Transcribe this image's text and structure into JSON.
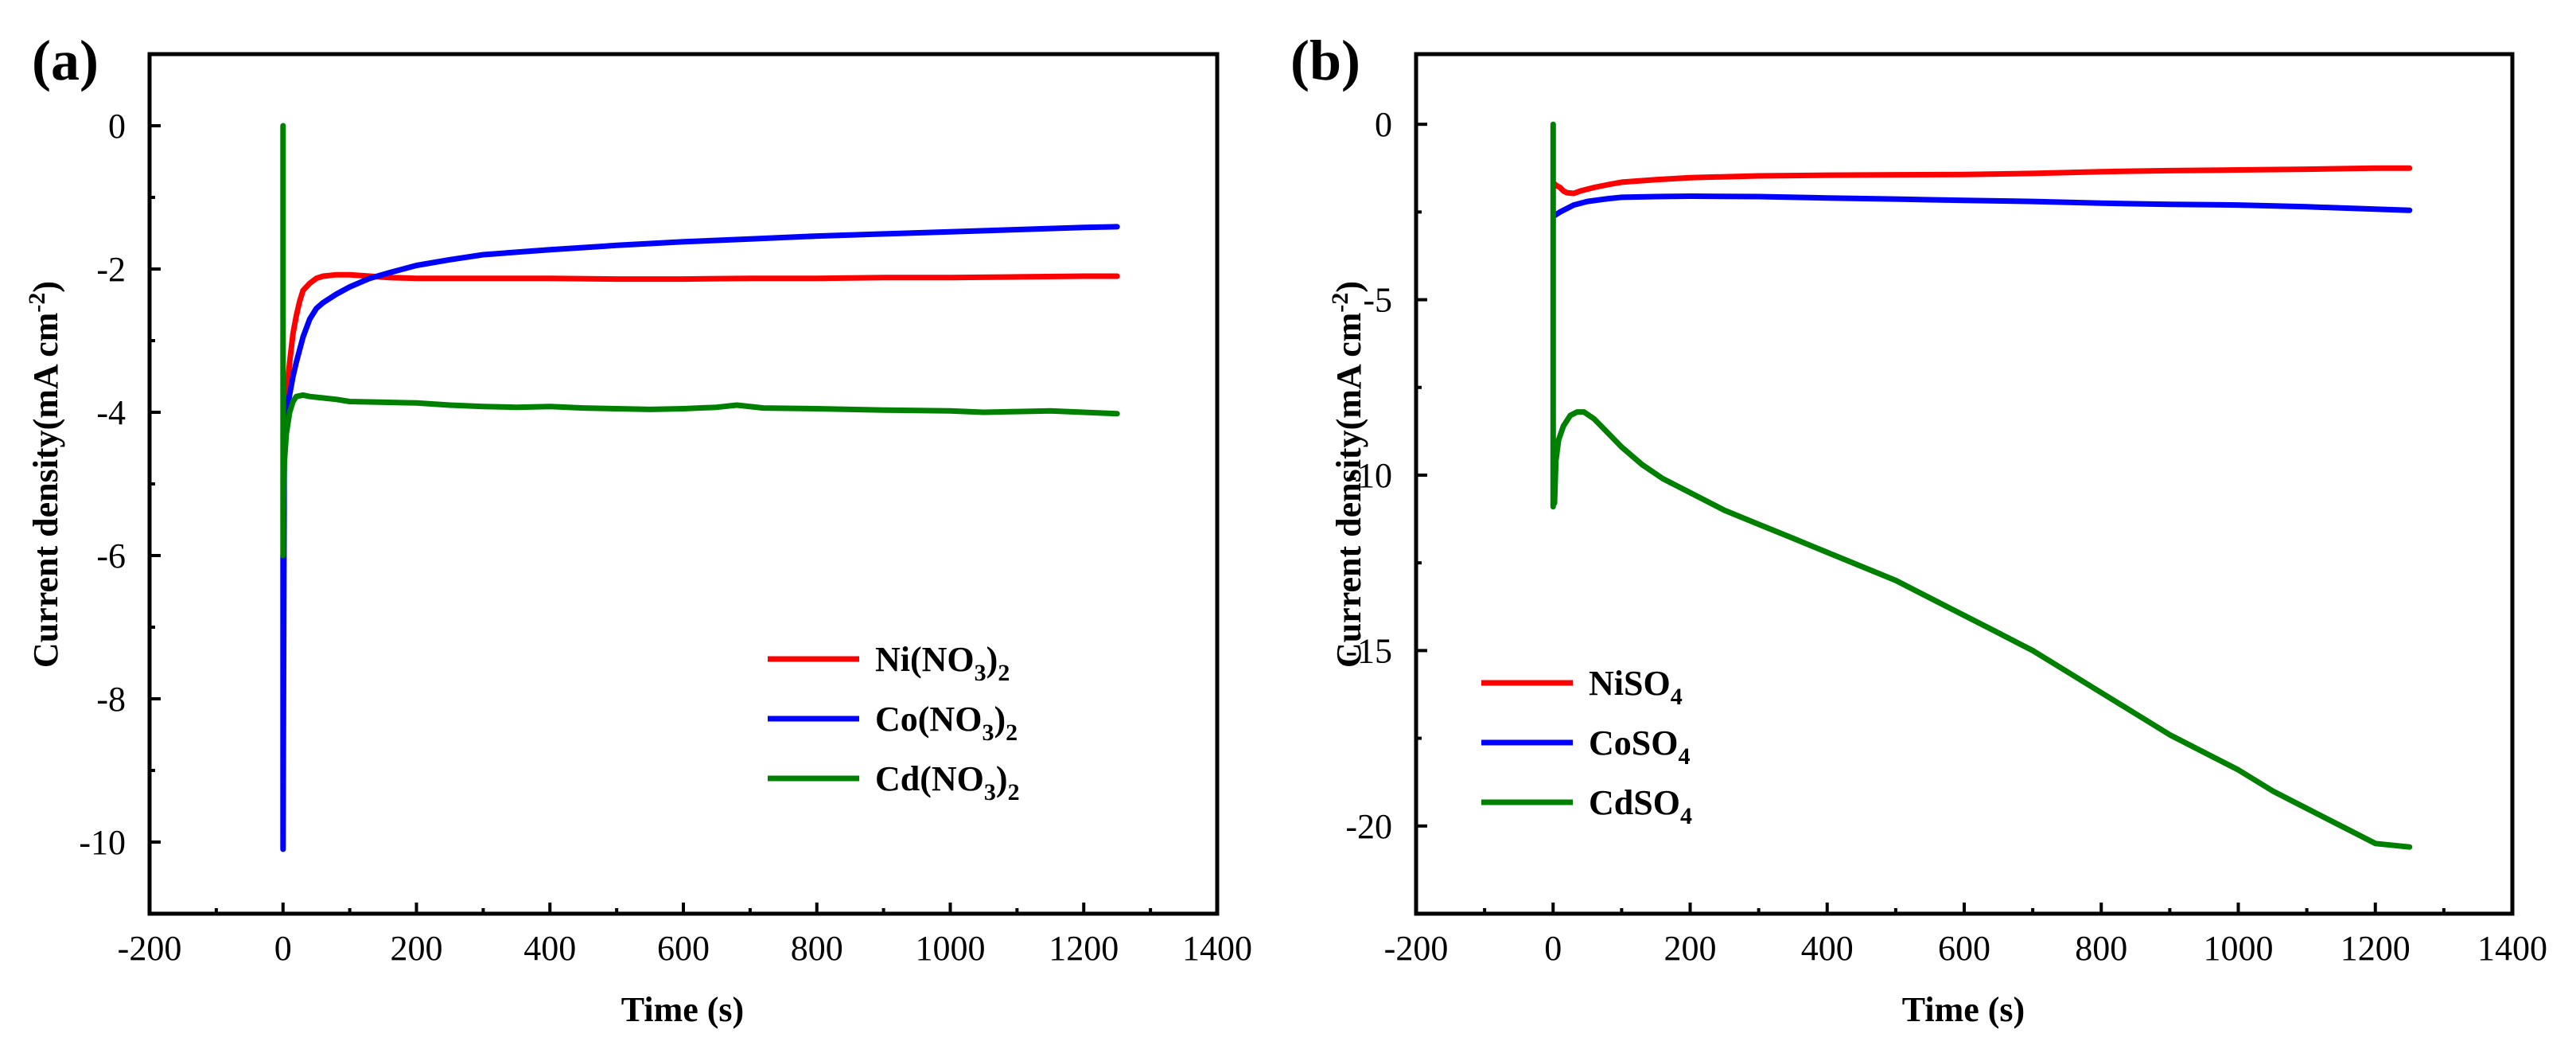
{
  "chart_data": [
    {
      "panel_label": "(a)",
      "type": "line",
      "xlabel": "Time (s)",
      "ylabel": "Current density(mA  cm",
      "ylabel_sup": "-2",
      "ylabel_close": ")",
      "xlim": [
        -200,
        1400
      ],
      "ylim": [
        -11,
        1
      ],
      "xticks": [
        -200,
        0,
        200,
        400,
        600,
        800,
        1000,
        1200,
        1400
      ],
      "yticks": [
        0,
        -2,
        -4,
        -6,
        -8,
        -10
      ],
      "legend_position": "lower-right",
      "series": [
        {
          "name": "Ni(NO3)2",
          "legend": {
            "prefix": "Ni(NO",
            "sub1": "3",
            "mid": ")",
            "sub2": "2"
          },
          "color": "#ff0000",
          "x": [
            5,
            10,
            15,
            20,
            25,
            30,
            40,
            50,
            60,
            80,
            100,
            130,
            160,
            200,
            300,
            400,
            500,
            600,
            700,
            800,
            900,
            1000,
            1100,
            1200,
            1250
          ],
          "y": [
            -3.8,
            -3.3,
            -2.9,
            -2.65,
            -2.45,
            -2.3,
            -2.2,
            -2.13,
            -2.1,
            -2.08,
            -2.08,
            -2.1,
            -2.12,
            -2.13,
            -2.13,
            -2.13,
            -2.14,
            -2.14,
            -2.13,
            -2.13,
            -2.12,
            -2.12,
            -2.11,
            -2.1,
            -2.1
          ]
        },
        {
          "name": "Co(NO3)2",
          "legend": {
            "prefix": "Co(NO",
            "sub1": "3",
            "mid": ")",
            "sub2": "2"
          },
          "color": "#0000ff",
          "x": [
            0,
            0,
            2,
            5,
            10,
            15,
            20,
            30,
            40,
            50,
            60,
            80,
            100,
            130,
            160,
            200,
            250,
            300,
            400,
            500,
            600,
            700,
            800,
            900,
            1000,
            1100,
            1200,
            1250
          ],
          "y": [
            -6.0,
            -10.1,
            -4.2,
            -4.0,
            -3.75,
            -3.5,
            -3.3,
            -2.95,
            -2.7,
            -2.55,
            -2.47,
            -2.35,
            -2.25,
            -2.13,
            -2.05,
            -1.95,
            -1.87,
            -1.8,
            -1.73,
            -1.67,
            -1.62,
            -1.58,
            -1.54,
            -1.51,
            -1.48,
            -1.45,
            -1.42,
            -1.41
          ]
        },
        {
          "name": "Cd(NO3)2",
          "legend": {
            "prefix": "Cd(NO",
            "sub1": "3",
            "mid": ")",
            "sub2": "2"
          },
          "color": "#008000",
          "x": [
            0,
            0,
            0,
            2,
            5,
            10,
            15,
            20,
            30,
            40,
            60,
            80,
            100,
            150,
            200,
            250,
            300,
            350,
            400,
            450,
            500,
            550,
            600,
            650,
            680,
            720,
            800,
            900,
            1000,
            1050,
            1100,
            1150,
            1200,
            1250
          ],
          "y": [
            -6.0,
            0.0,
            -5.5,
            -4.7,
            -4.3,
            -4.0,
            -3.85,
            -3.78,
            -3.76,
            -3.78,
            -3.8,
            -3.82,
            -3.85,
            -3.86,
            -3.87,
            -3.9,
            -3.92,
            -3.93,
            -3.92,
            -3.94,
            -3.95,
            -3.96,
            -3.95,
            -3.93,
            -3.9,
            -3.94,
            -3.95,
            -3.97,
            -3.98,
            -4.0,
            -3.99,
            -3.98,
            -4.0,
            -4.02
          ]
        }
      ]
    },
    {
      "panel_label": "(b)",
      "type": "line",
      "xlabel": "Time (s)",
      "ylabel": "Current density(mA  cm",
      "ylabel_sup": "-2",
      "ylabel_close": ")",
      "xlim": [
        -200,
        1400
      ],
      "ylim": [
        -22.5,
        2
      ],
      "xticks": [
        -200,
        0,
        200,
        400,
        600,
        800,
        1000,
        1200,
        1400
      ],
      "yticks": [
        0,
        -5,
        -10,
        -15,
        -20
      ],
      "yticklabels": [
        "0",
        "-5",
        "-10",
        "-15",
        "-20"
      ],
      "legend_position": "lower-left",
      "series": [
        {
          "name": "NiSO4",
          "legend": {
            "prefix": "NiSO",
            "sub1": "4",
            "mid": "",
            "sub2": ""
          },
          "color": "#ff0000",
          "x": [
            2,
            5,
            10,
            15,
            20,
            30,
            40,
            60,
            80,
            100,
            150,
            200,
            300,
            400,
            500,
            600,
            700,
            800,
            900,
            1000,
            1100,
            1200,
            1250
          ],
          "y": [
            -1.7,
            -1.75,
            -1.8,
            -1.9,
            -1.95,
            -1.97,
            -1.9,
            -1.8,
            -1.72,
            -1.65,
            -1.58,
            -1.52,
            -1.47,
            -1.45,
            -1.44,
            -1.43,
            -1.4,
            -1.35,
            -1.32,
            -1.3,
            -1.28,
            -1.25,
            -1.25
          ]
        },
        {
          "name": "CoSO4",
          "legend": {
            "prefix": "CoSO",
            "sub1": "4",
            "mid": "",
            "sub2": ""
          },
          "color": "#0000ff",
          "x": [
            2,
            10,
            20,
            30,
            50,
            80,
            100,
            150,
            200,
            300,
            400,
            500,
            600,
            700,
            800,
            900,
            1000,
            1100,
            1200,
            1250
          ],
          "y": [
            -2.6,
            -2.5,
            -2.4,
            -2.3,
            -2.2,
            -2.12,
            -2.08,
            -2.06,
            -2.05,
            -2.06,
            -2.1,
            -2.13,
            -2.17,
            -2.2,
            -2.25,
            -2.28,
            -2.3,
            -2.35,
            -2.42,
            -2.45
          ]
        },
        {
          "name": "CdSO4",
          "legend": {
            "prefix": "CdSO",
            "sub1": "4",
            "mid": "",
            "sub2": ""
          },
          "color": "#008000",
          "x": [
            0,
            0,
            0,
            2,
            4,
            8,
            15,
            25,
            35,
            45,
            60,
            80,
            100,
            130,
            160,
            200,
            250,
            300,
            350,
            400,
            450,
            500,
            550,
            600,
            650,
            700,
            750,
            800,
            850,
            900,
            950,
            1000,
            1050,
            1100,
            1150,
            1200,
            1250
          ],
          "y": [
            -10.9,
            0.0,
            -9.5,
            -10.8,
            -9.6,
            -9.0,
            -8.6,
            -8.3,
            -8.2,
            -8.2,
            -8.4,
            -8.8,
            -9.2,
            -9.7,
            -10.1,
            -10.5,
            -11.0,
            -11.4,
            -11.8,
            -12.2,
            -12.6,
            -13.0,
            -13.5,
            -14.0,
            -14.5,
            -15.0,
            -15.6,
            -16.2,
            -16.8,
            -17.4,
            -17.9,
            -18.4,
            -19.0,
            -19.5,
            -20.0,
            -20.5,
            -20.6
          ]
        }
      ]
    }
  ]
}
